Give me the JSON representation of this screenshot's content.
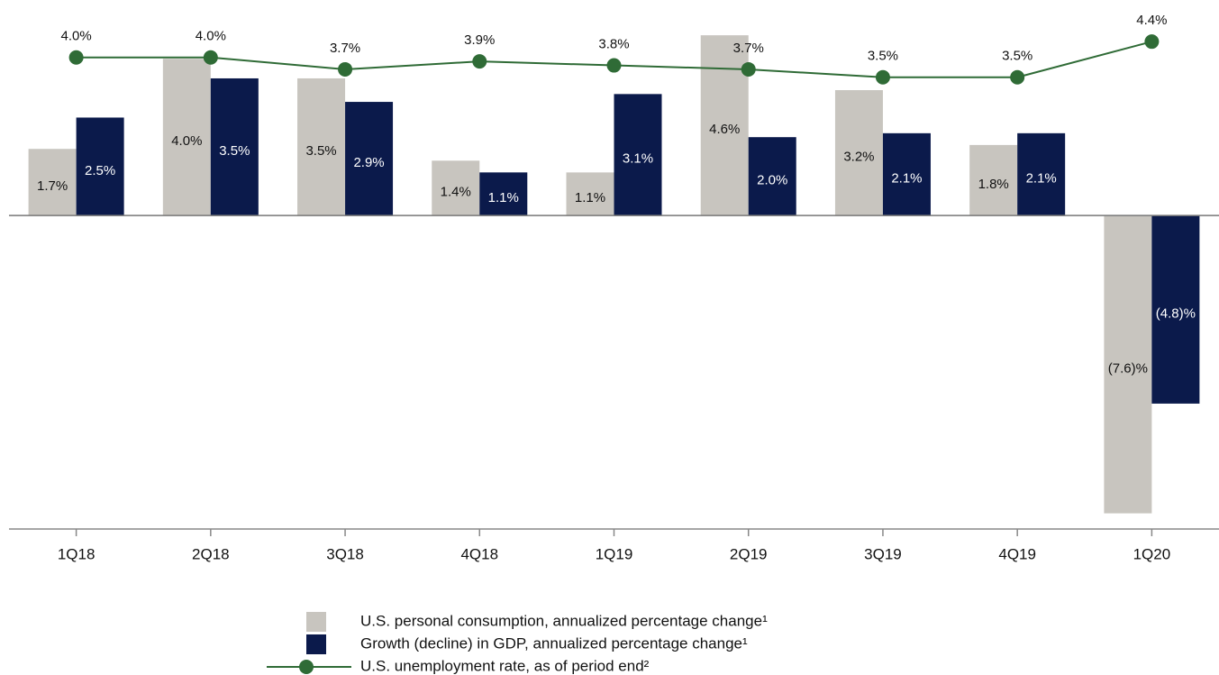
{
  "chart_data": {
    "type": "bar",
    "categories": [
      "1Q18",
      "2Q18",
      "3Q18",
      "4Q18",
      "1Q19",
      "2Q19",
      "3Q19",
      "4Q19",
      "1Q20"
    ],
    "ylim": [
      -8,
      5.5
    ],
    "y2lim": [
      -7.9,
      5.45
    ],
    "series": [
      {
        "name": "U.S. personal consumption, annualized percentage change¹",
        "type": "bar",
        "color": "#c8c5bf",
        "values": [
          1.7,
          4.0,
          3.5,
          1.4,
          1.1,
          4.6,
          3.2,
          1.8,
          -7.6
        ],
        "value_labels": [
          "1.7%",
          "4.0%",
          "3.5%",
          "1.4%",
          "1.1%",
          "4.6%",
          "3.2%",
          "1.8%",
          "(7.6)%"
        ]
      },
      {
        "name": "Growth (decline) in GDP, annualized percentage change¹",
        "type": "bar",
        "color": "#0b1a4b",
        "values": [
          2.5,
          3.5,
          2.9,
          1.1,
          3.1,
          2.0,
          2.1,
          2.1,
          -4.8
        ],
        "value_labels": [
          "2.5%",
          "3.5%",
          "2.9%",
          "1.1%",
          "3.1%",
          "2.0%",
          "2.1%",
          "2.1%",
          "(4.8)%"
        ]
      },
      {
        "name": "U.S. unemployment rate, as of period end²",
        "type": "line",
        "axis": "y2",
        "color": "#2f6b36",
        "values": [
          4.0,
          4.0,
          3.7,
          3.9,
          3.8,
          3.7,
          3.5,
          3.5,
          4.4
        ],
        "value_labels": [
          "4.0%",
          "4.0%",
          "3.7%",
          "3.9%",
          "3.8%",
          "3.7%",
          "3.5%",
          "3.5%",
          "4.4%"
        ]
      }
    ]
  }
}
